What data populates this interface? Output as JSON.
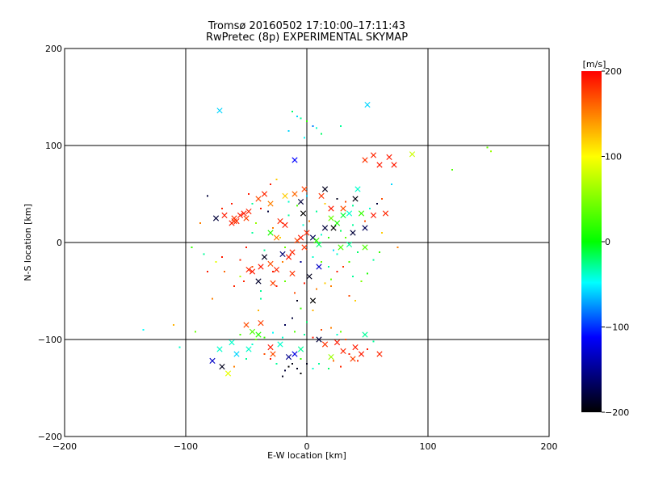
{
  "chart_data": {
    "type": "scatter",
    "title": "Tromsø 20160502 17:10:00–17:11:43",
    "subtitle": "RwPretec (8p) EXPERIMENTAL SKYMAP",
    "xlabel": "E-W location [km]",
    "ylabel": "N-S location [km]",
    "xlim": [
      -200,
      200
    ],
    "ylim": [
      -200,
      200
    ],
    "xticks": [
      "-200",
      "-100",
      "0",
      "100",
      "200"
    ],
    "yticks": [
      "-200",
      "-100",
      "0",
      "100",
      "200"
    ],
    "grid": true,
    "colorbar": {
      "label": "[m/s]",
      "range": [
        -200,
        200
      ],
      "ticks": [
        "200",
        "100",
        "0",
        "-100",
        "-200"
      ],
      "colors": [
        "#ff0000",
        "#ffff00",
        "#00ff00",
        "#00ffff",
        "#0000ff",
        "#000000"
      ]
    },
    "series": [
      {
        "marker": "x",
        "points": [
          [
            -72,
            136,
            -60
          ],
          [
            50,
            142,
            -60
          ],
          [
            87,
            91,
            80
          ],
          [
            60,
            80,
            190
          ],
          [
            48,
            85,
            180
          ],
          [
            68,
            88,
            190
          ],
          [
            72,
            80,
            190
          ],
          [
            55,
            90,
            185
          ],
          [
            -55,
            28,
            190
          ],
          [
            -58,
            22,
            185
          ],
          [
            -52,
            30,
            190
          ],
          [
            -60,
            25,
            180
          ],
          [
            -48,
            32,
            185
          ],
          [
            -62,
            20,
            190
          ],
          [
            -50,
            25,
            175
          ],
          [
            -40,
            45,
            170
          ],
          [
            -35,
            50,
            185
          ],
          [
            -30,
            40,
            150
          ],
          [
            -18,
            48,
            120
          ],
          [
            -10,
            50,
            160
          ],
          [
            -5,
            42,
            -180
          ],
          [
            -48,
            -28,
            185
          ],
          [
            -45,
            -30,
            190
          ],
          [
            -30,
            -22,
            170
          ],
          [
            -25,
            -28,
            185
          ],
          [
            -38,
            -25,
            190
          ],
          [
            -5,
            5,
            190
          ],
          [
            0,
            10,
            185
          ],
          [
            -8,
            2,
            175
          ],
          [
            5,
            5,
            -170
          ],
          [
            -2,
            -5,
            180
          ],
          [
            8,
            2,
            20
          ],
          [
            10,
            -2,
            -20
          ],
          [
            -12,
            -10,
            185
          ],
          [
            -18,
            18,
            190
          ],
          [
            -22,
            22,
            185
          ],
          [
            15,
            15,
            -180
          ],
          [
            20,
            25,
            40
          ],
          [
            25,
            20,
            10
          ],
          [
            30,
            28,
            -10
          ],
          [
            35,
            30,
            -40
          ],
          [
            40,
            45,
            -195
          ],
          [
            42,
            55,
            -40
          ],
          [
            45,
            30,
            20
          ],
          [
            55,
            28,
            190
          ],
          [
            65,
            30,
            185
          ],
          [
            30,
            35,
            170
          ],
          [
            20,
            35,
            190
          ],
          [
            15,
            55,
            -190
          ],
          [
            12,
            48,
            180
          ],
          [
            -2,
            55,
            175
          ],
          [
            28,
            -5,
            30
          ],
          [
            35,
            -2,
            -30
          ],
          [
            38,
            10,
            -180
          ],
          [
            48,
            15,
            -170
          ],
          [
            -30,
            10,
            10
          ],
          [
            -25,
            5,
            150
          ],
          [
            -35,
            -15,
            -190
          ],
          [
            -20,
            -12,
            -160
          ],
          [
            -15,
            -15,
            190
          ],
          [
            -12,
            -32,
            180
          ],
          [
            -65,
            -135,
            90
          ],
          [
            -70,
            -128,
            -190
          ],
          [
            -78,
            -122,
            -130
          ],
          [
            -58,
            -115,
            -60
          ],
          [
            -48,
            -110,
            -40
          ],
          [
            -45,
            -92,
            30
          ],
          [
            -40,
            -95,
            15
          ],
          [
            -30,
            -108,
            190
          ],
          [
            -22,
            -105,
            -40
          ],
          [
            -28,
            -115,
            170
          ],
          [
            -15,
            -118,
            -150
          ],
          [
            -10,
            -115,
            -120
          ],
          [
            -5,
            -110,
            -30
          ],
          [
            10,
            -100,
            -180
          ],
          [
            15,
            -105,
            180
          ],
          [
            25,
            -103,
            190
          ],
          [
            30,
            -112,
            185
          ],
          [
            40,
            -108,
            190
          ],
          [
            45,
            -115,
            190
          ],
          [
            60,
            -115,
            185
          ],
          [
            38,
            -120,
            175
          ],
          [
            48,
            -95,
            -30
          ],
          [
            20,
            -118,
            60
          ],
          [
            -72,
            -110,
            -40
          ],
          [
            -62,
            -103,
            -40
          ],
          [
            -38,
            -83,
            175
          ],
          [
            -50,
            -85,
            170
          ],
          [
            -60,
            22,
            180
          ],
          [
            -68,
            28,
            190
          ],
          [
            -75,
            25,
            -180
          ],
          [
            -40,
            -40,
            -185
          ],
          [
            -28,
            -42,
            175
          ],
          [
            2,
            -35,
            -190
          ],
          [
            5,
            -60,
            -200
          ],
          [
            -10,
            85,
            -110
          ],
          [
            10,
            -25,
            -130
          ],
          [
            22,
            15,
            -200
          ],
          [
            -3,
            30,
            -200
          ],
          [
            48,
            -5,
            30
          ]
        ]
      },
      {
        "marker": "dot",
        "points": [
          [
            -12,
            135,
            -20
          ],
          [
            -8,
            130,
            -60
          ],
          [
            -5,
            128,
            -30
          ],
          [
            0,
            125,
            20
          ],
          [
            5,
            120,
            -80
          ],
          [
            8,
            118,
            -40
          ],
          [
            -15,
            115,
            -60
          ],
          [
            12,
            112,
            -20
          ],
          [
            28,
            120,
            -30
          ],
          [
            -2,
            108,
            -50
          ],
          [
            149,
            98,
            40
          ],
          [
            152,
            94,
            60
          ],
          [
            120,
            75,
            30
          ],
          [
            -135,
            -90,
            -50
          ],
          [
            -110,
            -85,
            130
          ],
          [
            -92,
            -92,
            40
          ],
          [
            -78,
            -58,
            150
          ],
          [
            -105,
            -108,
            -40
          ],
          [
            -82,
            48,
            -180
          ],
          [
            -88,
            20,
            150
          ],
          [
            -85,
            -12,
            -30
          ],
          [
            -95,
            -5,
            20
          ],
          [
            -75,
            -20,
            90
          ],
          [
            -60,
            -45,
            185
          ],
          [
            -68,
            -30,
            160
          ],
          [
            -55,
            -35,
            70
          ],
          [
            -82,
            -30,
            190
          ],
          [
            -70,
            -15,
            190
          ],
          [
            -8,
            -60,
            -190
          ],
          [
            -10,
            -52,
            170
          ],
          [
            -5,
            -68,
            20
          ],
          [
            -12,
            -78,
            -180
          ],
          [
            -18,
            -85,
            -170
          ],
          [
            0,
            -82,
            -20
          ],
          [
            5,
            -70,
            130
          ],
          [
            8,
            -48,
            150
          ],
          [
            15,
            -42,
            120
          ],
          [
            20,
            -38,
            40
          ],
          [
            25,
            -30,
            190
          ],
          [
            30,
            -25,
            180
          ],
          [
            38,
            -35,
            -30
          ],
          [
            45,
            -40,
            50
          ],
          [
            50,
            -32,
            10
          ],
          [
            55,
            -18,
            -30
          ],
          [
            60,
            -10,
            20
          ],
          [
            62,
            10,
            120
          ],
          [
            58,
            40,
            -180
          ],
          [
            62,
            45,
            170
          ],
          [
            70,
            60,
            -60
          ],
          [
            75,
            -5,
            150
          ],
          [
            -30,
            60,
            190
          ],
          [
            -25,
            65,
            120
          ],
          [
            -40,
            -70,
            130
          ],
          [
            -38,
            -58,
            -30
          ],
          [
            35,
            -55,
            170
          ],
          [
            40,
            -60,
            120
          ],
          [
            -5,
            -120,
            20
          ],
          [
            -8,
            -130,
            -190
          ],
          [
            -15,
            -128,
            -200
          ],
          [
            -12,
            -125,
            -195
          ],
          [
            -18,
            -132,
            -180
          ],
          [
            -20,
            -138,
            -190
          ],
          [
            -5,
            -135,
            -200
          ],
          [
            0,
            -125,
            -190
          ],
          [
            5,
            -130,
            -40
          ],
          [
            10,
            -125,
            -30
          ],
          [
            18,
            -130,
            -20
          ],
          [
            22,
            -122,
            160
          ],
          [
            28,
            -128,
            185
          ],
          [
            35,
            -115,
            190
          ],
          [
            42,
            -122,
            185
          ],
          [
            50,
            -110,
            190
          ],
          [
            55,
            -102,
            -30
          ],
          [
            32,
            -100,
            170
          ],
          [
            25,
            -95,
            -40
          ],
          [
            -25,
            -125,
            -30
          ],
          [
            -30,
            -120,
            190
          ],
          [
            -35,
            -115,
            170
          ],
          [
            -45,
            -105,
            -40
          ],
          [
            -50,
            -120,
            -30
          ],
          [
            -60,
            -128,
            150
          ],
          [
            -55,
            -95,
            30
          ],
          [
            -42,
            -100,
            40
          ],
          [
            -35,
            -98,
            20
          ],
          [
            -28,
            -93,
            -50
          ],
          [
            -20,
            -98,
            -40
          ],
          [
            -10,
            -92,
            30
          ],
          [
            -2,
            -95,
            -30
          ],
          [
            5,
            -98,
            190
          ],
          [
            12,
            -90,
            170
          ],
          [
            20,
            -88,
            150
          ],
          [
            28,
            -92,
            40
          ],
          [
            -48,
            50,
            190
          ],
          [
            -45,
            10,
            -30
          ],
          [
            -42,
            20,
            60
          ],
          [
            -32,
            32,
            -180
          ],
          [
            -28,
            15,
            150
          ],
          [
            -22,
            5,
            120
          ],
          [
            -18,
            -5,
            40
          ],
          [
            -15,
            28,
            -30
          ],
          [
            -8,
            38,
            30
          ],
          [
            -3,
            18,
            -40
          ],
          [
            2,
            22,
            150
          ],
          [
            8,
            32,
            -30
          ],
          [
            12,
            8,
            -40
          ],
          [
            18,
            5,
            20
          ],
          [
            22,
            -8,
            -60
          ],
          [
            28,
            12,
            -20
          ],
          [
            32,
            5,
            40
          ],
          [
            38,
            18,
            -30
          ],
          [
            42,
            -10,
            -20
          ],
          [
            48,
            22,
            170
          ],
          [
            52,
            35,
            -40
          ],
          [
            -50,
            -5,
            190
          ],
          [
            -55,
            -18,
            185
          ],
          [
            -35,
            -8,
            -30
          ],
          [
            -28,
            -30,
            190
          ],
          [
            -20,
            -20,
            150
          ],
          [
            -5,
            -20,
            -150
          ],
          [
            5,
            -15,
            -40
          ],
          [
            12,
            -20,
            40
          ],
          [
            18,
            -25,
            -30
          ],
          [
            25,
            -12,
            -40
          ],
          [
            35,
            -20,
            30
          ],
          [
            -62,
            40,
            190
          ],
          [
            -70,
            35,
            185
          ],
          [
            -45,
            40,
            -30
          ],
          [
            -38,
            35,
            190
          ],
          [
            -15,
            42,
            -40
          ],
          [
            0,
            48,
            -60
          ],
          [
            25,
            45,
            -190
          ],
          [
            32,
            42,
            170
          ],
          [
            38,
            38,
            -30
          ],
          [
            15,
            40,
            120
          ],
          [
            20,
            -45,
            150
          ],
          [
            -2,
            -42,
            190
          ],
          [
            -25,
            -45,
            190
          ],
          [
            -18,
            -40,
            40
          ],
          [
            -45,
            -25,
            170
          ],
          [
            -52,
            -40,
            185
          ],
          [
            -38,
            -50,
            -30
          ]
        ]
      }
    ]
  }
}
